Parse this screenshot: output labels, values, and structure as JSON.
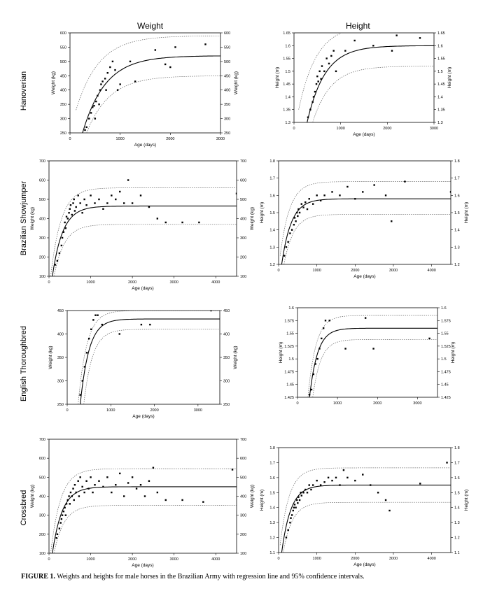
{
  "column_titles": [
    "Weight",
    "Height"
  ],
  "row_labels": [
    "Hanoverian",
    "Brazilian Showjumper",
    "English Thoroughbred",
    "Crossbred"
  ],
  "caption": {
    "label": "FIGURE 1.",
    "text": " Weights and heights for male horses in the Brazilian Army with regression line and 95% confidence intervals."
  },
  "chart_data": [
    {
      "type": "scatter",
      "breed": "Hanoverian",
      "measure": "Weight",
      "xlabel": "Age (days)",
      "ylabel": "Weight (kg)",
      "xlim": [
        0,
        3000
      ],
      "ylim": [
        250,
        600
      ],
      "xticks": [
        0,
        1000,
        2000,
        3000
      ],
      "yticks": [
        250,
        300,
        350,
        400,
        450,
        500,
        550,
        600
      ],
      "fit": {
        "asymptote": 520,
        "start": 250,
        "x0": 250,
        "k": 0.0022
      },
      "ci_upper": {
        "asymptote": 590,
        "start": 330,
        "x0": 120,
        "k": 0.0022
      },
      "ci_lower": {
        "asymptote": 450,
        "start": 250,
        "x0": 330,
        "k": 0.0022
      },
      "points": [
        [
          300,
          260
        ],
        [
          330,
          270
        ],
        [
          380,
          300
        ],
        [
          420,
          320
        ],
        [
          450,
          340
        ],
        [
          480,
          345
        ],
        [
          500,
          300
        ],
        [
          520,
          360
        ],
        [
          550,
          380
        ],
        [
          580,
          350
        ],
        [
          600,
          400
        ],
        [
          620,
          420
        ],
        [
          650,
          430
        ],
        [
          700,
          440
        ],
        [
          720,
          400
        ],
        [
          750,
          460
        ],
        [
          800,
          480
        ],
        [
          850,
          500
        ],
        [
          900,
          470
        ],
        [
          950,
          400
        ],
        [
          1000,
          420
        ],
        [
          1200,
          500
        ],
        [
          1300,
          430
        ],
        [
          1700,
          540
        ],
        [
          1900,
          490
        ],
        [
          2000,
          480
        ],
        [
          2100,
          550
        ],
        [
          2700,
          560
        ]
      ]
    },
    {
      "type": "scatter",
      "breed": "Hanoverian",
      "measure": "Height",
      "xlabel": "Age (days)",
      "ylabel": "Height (m)",
      "xlim": [
        0,
        3000
      ],
      "ylim": [
        1.3,
        1.65
      ],
      "xticks": [
        0,
        1000,
        2000,
        3000
      ],
      "yticks": [
        1.3,
        1.35,
        1.4,
        1.45,
        1.5,
        1.55,
        1.6,
        1.65
      ],
      "fit": {
        "asymptote": 1.6,
        "start": 1.3,
        "x0": 280,
        "k": 0.0026
      },
      "ci_upper": {
        "asymptote": 1.68,
        "start": 1.35,
        "x0": 100,
        "k": 0.0026
      },
      "ci_lower": {
        "asymptote": 1.52,
        "start": 1.3,
        "x0": 400,
        "k": 0.0026
      },
      "points": [
        [
          300,
          1.32
        ],
        [
          350,
          1.35
        ],
        [
          400,
          1.38
        ],
        [
          420,
          1.4
        ],
        [
          450,
          1.42
        ],
        [
          480,
          1.45
        ],
        [
          500,
          1.48
        ],
        [
          520,
          1.46
        ],
        [
          550,
          1.5
        ],
        [
          580,
          1.47
        ],
        [
          600,
          1.52
        ],
        [
          650,
          1.5
        ],
        [
          700,
          1.55
        ],
        [
          750,
          1.53
        ],
        [
          800,
          1.56
        ],
        [
          850,
          1.58
        ],
        [
          900,
          1.5
        ],
        [
          1100,
          1.58
        ],
        [
          1300,
          1.62
        ],
        [
          1700,
          1.6
        ],
        [
          2100,
          1.58
        ],
        [
          2200,
          1.64
        ],
        [
          2700,
          1.63
        ]
      ]
    },
    {
      "type": "scatter",
      "breed": "Brazilian Showjumper",
      "measure": "Weight",
      "xlabel": "Age (days)",
      "ylabel": "Weight (kg)",
      "xlim": [
        0,
        4500
      ],
      "ylim": [
        100,
        700
      ],
      "xticks": [
        0,
        1000,
        2000,
        3000,
        4000
      ],
      "yticks": [
        100,
        200,
        300,
        400,
        500,
        600,
        700
      ],
      "fit": {
        "asymptote": 465,
        "start": 100,
        "x0": 80,
        "k": 0.004
      },
      "ci_upper": {
        "asymptote": 560,
        "start": 100,
        "x0": 40,
        "k": 0.004
      },
      "ci_lower": {
        "asymptote": 370,
        "start": 100,
        "x0": 120,
        "k": 0.004
      },
      "points": [
        [
          150,
          160
        ],
        [
          200,
          180
        ],
        [
          250,
          220
        ],
        [
          300,
          260
        ],
        [
          320,
          300
        ],
        [
          350,
          330
        ],
        [
          380,
          380
        ],
        [
          400,
          350
        ],
        [
          420,
          410
        ],
        [
          450,
          400
        ],
        [
          480,
          430
        ],
        [
          500,
          450
        ],
        [
          520,
          470
        ],
        [
          550,
          420
        ],
        [
          580,
          480
        ],
        [
          600,
          500
        ],
        [
          620,
          440
        ],
        [
          650,
          460
        ],
        [
          700,
          520
        ],
        [
          750,
          480
        ],
        [
          800,
          430
        ],
        [
          850,
          500
        ],
        [
          900,
          470
        ],
        [
          1000,
          520
        ],
        [
          1100,
          480
        ],
        [
          1200,
          500
        ],
        [
          1300,
          450
        ],
        [
          1400,
          480
        ],
        [
          1500,
          520
        ],
        [
          1600,
          500
        ],
        [
          1700,
          540
        ],
        [
          1800,
          480
        ],
        [
          1900,
          600
        ],
        [
          2000,
          480
        ],
        [
          2200,
          520
        ],
        [
          2400,
          460
        ],
        [
          2600,
          400
        ],
        [
          2800,
          380
        ],
        [
          3200,
          380
        ],
        [
          3600,
          380
        ],
        [
          4500,
          530
        ]
      ]
    },
    {
      "type": "scatter",
      "breed": "Brazilian Showjumper",
      "measure": "Height",
      "xlabel": "Age (days)",
      "ylabel": "Height (m)",
      "xlim": [
        0,
        4500
      ],
      "ylim": [
        1.2,
        1.8
      ],
      "xticks": [
        0,
        1000,
        2000,
        3000,
        4000
      ],
      "yticks": [
        1.2,
        1.3,
        1.4,
        1.5,
        1.6,
        1.7,
        1.8
      ],
      "fit": {
        "asymptote": 1.58,
        "start": 1.2,
        "x0": 80,
        "k": 0.004
      },
      "ci_upper": {
        "asymptote": 1.68,
        "start": 1.25,
        "x0": 40,
        "k": 0.004
      },
      "ci_lower": {
        "asymptote": 1.49,
        "start": 1.2,
        "x0": 140,
        "k": 0.004
      },
      "points": [
        [
          150,
          1.25
        ],
        [
          200,
          1.3
        ],
        [
          250,
          1.33
        ],
        [
          300,
          1.38
        ],
        [
          350,
          1.4
        ],
        [
          400,
          1.43
        ],
        [
          420,
          1.47
        ],
        [
          450,
          1.45
        ],
        [
          480,
          1.5
        ],
        [
          500,
          1.48
        ],
        [
          520,
          1.52
        ],
        [
          550,
          1.5
        ],
        [
          600,
          1.55
        ],
        [
          650,
          1.53
        ],
        [
          700,
          1.56
        ],
        [
          750,
          1.52
        ],
        [
          800,
          1.58
        ],
        [
          900,
          1.55
        ],
        [
          1000,
          1.6
        ],
        [
          1100,
          1.57
        ],
        [
          1200,
          1.6
        ],
        [
          1400,
          1.62
        ],
        [
          1600,
          1.6
        ],
        [
          1800,
          1.65
        ],
        [
          2000,
          1.58
        ],
        [
          2200,
          1.62
        ],
        [
          2500,
          1.66
        ],
        [
          2800,
          1.6
        ],
        [
          2950,
          1.45
        ],
        [
          3300,
          1.68
        ],
        [
          4500,
          1.62
        ]
      ]
    },
    {
      "type": "scatter",
      "breed": "English Thoroughbred",
      "measure": "Weight",
      "xlabel": "Age (days)",
      "ylabel": "Weight (kg)",
      "xlim": [
        0,
        3500
      ],
      "ylim": [
        250,
        450
      ],
      "xticks": [
        0,
        1000,
        2000,
        3000
      ],
      "yticks": [
        250,
        300,
        350,
        400,
        450
      ],
      "fit": {
        "asymptote": 432,
        "start": 250,
        "x0": 300,
        "k": 0.005
      },
      "ci_upper": {
        "asymptote": 450,
        "start": 250,
        "x0": 250,
        "k": 0.005
      },
      "ci_lower": {
        "asymptote": 410,
        "start": 250,
        "x0": 380,
        "k": 0.005
      },
      "points": [
        [
          300,
          270
        ],
        [
          350,
          300
        ],
        [
          400,
          330
        ],
        [
          450,
          360
        ],
        [
          500,
          390
        ],
        [
          550,
          410
        ],
        [
          600,
          430
        ],
        [
          650,
          440
        ],
        [
          700,
          440
        ],
        [
          800,
          420
        ],
        [
          1200,
          400
        ],
        [
          1700,
          420
        ],
        [
          1900,
          420
        ],
        [
          3300,
          450
        ]
      ]
    },
    {
      "type": "scatter",
      "breed": "English Thoroughbred",
      "measure": "Height",
      "xlabel": "",
      "ylabel": "Height (m)",
      "xlim": [
        0,
        3500
      ],
      "ylim": [
        1.425,
        1.6
      ],
      "xticks": [
        0,
        1000,
        2000,
        3000
      ],
      "yticks": [
        1.425,
        1.45,
        1.475,
        1.5,
        1.525,
        1.55,
        1.575,
        1.6
      ],
      "fit": {
        "asymptote": 1.56,
        "start": 1.425,
        "x0": 300,
        "k": 0.005
      },
      "ci_upper": {
        "asymptote": 1.585,
        "start": 1.425,
        "x0": 260,
        "k": 0.005
      },
      "ci_lower": {
        "asymptote": 1.538,
        "start": 1.425,
        "x0": 380,
        "k": 0.005
      },
      "points": [
        [
          300,
          1.43
        ],
        [
          350,
          1.44
        ],
        [
          400,
          1.47
        ],
        [
          450,
          1.49
        ],
        [
          500,
          1.5
        ],
        [
          550,
          1.52
        ],
        [
          600,
          1.54
        ],
        [
          650,
          1.56
        ],
        [
          700,
          1.575
        ],
        [
          800,
          1.575
        ],
        [
          1200,
          1.52
        ],
        [
          1700,
          1.58
        ],
        [
          1900,
          1.52
        ],
        [
          3300,
          1.54
        ]
      ]
    },
    {
      "type": "scatter",
      "breed": "Crossbred",
      "measure": "Weight",
      "xlabel": "Age (days)",
      "ylabel": "Weight (kg)",
      "xlim": [
        0,
        4500
      ],
      "ylim": [
        100,
        700
      ],
      "xticks": [
        0,
        1000,
        2000,
        3000,
        4000
      ],
      "yticks": [
        100,
        200,
        300,
        400,
        500,
        600,
        700
      ],
      "fit": {
        "asymptote": 450,
        "start": 100,
        "x0": 80,
        "k": 0.0042
      },
      "ci_upper": {
        "asymptote": 545,
        "start": 100,
        "x0": 40,
        "k": 0.0042
      },
      "ci_lower": {
        "asymptote": 352,
        "start": 100,
        "x0": 120,
        "k": 0.0042
      },
      "points": [
        [
          180,
          180
        ],
        [
          200,
          200
        ],
        [
          250,
          230
        ],
        [
          280,
          260
        ],
        [
          300,
          280
        ],
        [
          320,
          300
        ],
        [
          350,
          320
        ],
        [
          380,
          340
        ],
        [
          400,
          300
        ],
        [
          420,
          360
        ],
        [
          450,
          380
        ],
        [
          480,
          400
        ],
        [
          500,
          360
        ],
        [
          520,
          420
        ],
        [
          550,
          400
        ],
        [
          580,
          440
        ],
        [
          600,
          380
        ],
        [
          620,
          460
        ],
        [
          650,
          420
        ],
        [
          700,
          480
        ],
        [
          720,
          400
        ],
        [
          750,
          500
        ],
        [
          800,
          450
        ],
        [
          850,
          420
        ],
        [
          900,
          480
        ],
        [
          950,
          440
        ],
        [
          1000,
          500
        ],
        [
          1050,
          420
        ],
        [
          1100,
          460
        ],
        [
          1200,
          480
        ],
        [
          1300,
          450
        ],
        [
          1400,
          500
        ],
        [
          1500,
          420
        ],
        [
          1600,
          460
        ],
        [
          1700,
          520
        ],
        [
          1800,
          400
        ],
        [
          1900,
          470
        ],
        [
          2000,
          500
        ],
        [
          2100,
          440
        ],
        [
          2200,
          460
        ],
        [
          2300,
          400
        ],
        [
          2400,
          480
        ],
        [
          2500,
          550
        ],
        [
          2600,
          420
        ],
        [
          2800,
          380
        ],
        [
          3200,
          380
        ],
        [
          3700,
          370
        ],
        [
          4400,
          540
        ]
      ]
    },
    {
      "type": "scatter",
      "breed": "Crossbred",
      "measure": "Height",
      "xlabel": "Age (days)",
      "ylabel": "Height (m)",
      "xlim": [
        0,
        4500
      ],
      "ylim": [
        1.1,
        1.8
      ],
      "xticks": [
        0,
        1000,
        2000,
        3000,
        4000
      ],
      "yticks": [
        1.1,
        1.2,
        1.3,
        1.4,
        1.5,
        1.6,
        1.7,
        1.8
      ],
      "fit": {
        "asymptote": 1.55,
        "start": 1.1,
        "x0": 80,
        "k": 0.0042
      },
      "ci_upper": {
        "asymptote": 1.665,
        "start": 1.15,
        "x0": 40,
        "k": 0.0042
      },
      "ci_lower": {
        "asymptote": 1.435,
        "start": 1.1,
        "x0": 120,
        "k": 0.0042
      },
      "points": [
        [
          200,
          1.2
        ],
        [
          250,
          1.25
        ],
        [
          300,
          1.3
        ],
        [
          320,
          1.33
        ],
        [
          350,
          1.35
        ],
        [
          380,
          1.38
        ],
        [
          400,
          1.4
        ],
        [
          420,
          1.42
        ],
        [
          450,
          1.4
        ],
        [
          480,
          1.45
        ],
        [
          500,
          1.43
        ],
        [
          520,
          1.47
        ],
        [
          550,
          1.45
        ],
        [
          580,
          1.5
        ],
        [
          600,
          1.48
        ],
        [
          650,
          1.5
        ],
        [
          700,
          1.52
        ],
        [
          750,
          1.5
        ],
        [
          800,
          1.55
        ],
        [
          850,
          1.52
        ],
        [
          900,
          1.55
        ],
        [
          1000,
          1.58
        ],
        [
          1100,
          1.55
        ],
        [
          1200,
          1.57
        ],
        [
          1300,
          1.6
        ],
        [
          1400,
          1.58
        ],
        [
          1500,
          1.6
        ],
        [
          1600,
          1.55
        ],
        [
          1700,
          1.65
        ],
        [
          1800,
          1.6
        ],
        [
          2000,
          1.58
        ],
        [
          2200,
          1.62
        ],
        [
          2400,
          1.55
        ],
        [
          2600,
          1.5
        ],
        [
          2800,
          1.45
        ],
        [
          2900,
          1.38
        ],
        [
          3700,
          1.56
        ],
        [
          4400,
          1.7
        ]
      ]
    }
  ]
}
